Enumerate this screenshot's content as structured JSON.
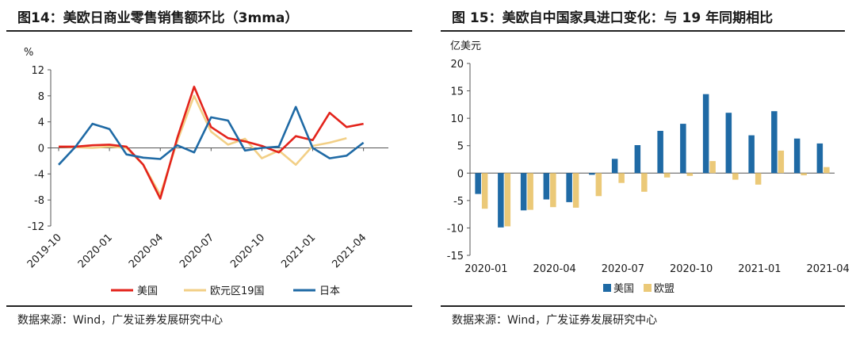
{
  "left": {
    "title": "图14：美欧日商业零售销售额环比（3mma）",
    "source": "数据来源：Wind，广发证券发展研究中心",
    "chart_data": {
      "type": "line",
      "title": "美欧日商业零售销售额环比（3mma）",
      "ylabel": "%",
      "xlabel": "",
      "ylim": [
        -12,
        12
      ],
      "yticks": [
        12,
        8,
        4,
        0,
        -4,
        -8,
        -12
      ],
      "ytick_labels": [
        "12",
        "8",
        "4",
        "0",
        "-4",
        "-8",
        "-12"
      ],
      "x": [
        "2019-10",
        "2019-11",
        "2019-12",
        "2020-01",
        "2020-02",
        "2020-03",
        "2020-04",
        "2020-05",
        "2020-06",
        "2020-07",
        "2020-08",
        "2020-09",
        "2020-10",
        "2020-11",
        "2020-12",
        "2021-01",
        "2021-02",
        "2021-03",
        "2021-04",
        "2021-05"
      ],
      "xtick_labels": [
        "2019-10",
        "2020-01",
        "2020-04",
        "2020-07",
        "2020-10",
        "2021-01",
        "2021-04"
      ],
      "xtick_index": [
        0,
        3,
        6,
        9,
        12,
        15,
        18
      ],
      "legend_position": "bottom",
      "series": [
        {
          "name": "美国",
          "color": "#e3231b",
          "values": [
            0.2,
            0.2,
            0.4,
            0.5,
            0.2,
            -2.6,
            -7.8,
            1.5,
            9.4,
            3.2,
            1.5,
            1.0,
            0.3,
            -0.7,
            1.8,
            1.2,
            5.4,
            3.2,
            3.7,
            null
          ]
        },
        {
          "name": "欧元区19国",
          "color": "#f2cf86",
          "values": [
            0.2,
            0.1,
            0.0,
            0.2,
            0.0,
            -2.6,
            -7.2,
            1.0,
            8.0,
            2.5,
            0.5,
            1.4,
            -1.6,
            -0.4,
            -2.6,
            0.3,
            0.8,
            1.5,
            null,
            null
          ]
        },
        {
          "name": "日本",
          "color": "#1f6aa5",
          "values": [
            -2.6,
            0.2,
            3.7,
            2.9,
            -1.0,
            -1.5,
            -1.7,
            0.4,
            -0.7,
            4.7,
            4.2,
            -0.4,
            0.0,
            0.2,
            6.3,
            0.0,
            -1.6,
            -1.2,
            0.8,
            null
          ]
        }
      ]
    }
  },
  "right": {
    "title": "图 15：美欧自中国家具进口变化：与 19 年同期相比",
    "source": "数据来源：Wind，广发证券发展研究中心",
    "chart_data": {
      "type": "bar",
      "title": "美欧自中国家具进口变化：与 19 年同期相比",
      "ylabel": "亿美元",
      "xlabel": "",
      "ylim": [
        -15,
        20
      ],
      "yticks": [
        20,
        15,
        10,
        5,
        0,
        -5,
        -10,
        -15
      ],
      "ytick_labels": [
        "20",
        "15",
        "10",
        "5",
        "0",
        "-5",
        "-10",
        "-15"
      ],
      "categories": [
        "2020-01",
        "2020-02",
        "2020-03",
        "2020-04",
        "2020-05",
        "2020-06",
        "2020-07",
        "2020-08",
        "2020-09",
        "2020-10",
        "2020-11",
        "2020-12",
        "2021-01",
        "2021-02",
        "2021-03",
        "2021-04"
      ],
      "xtick_labels": [
        "2020-01",
        "2020-04",
        "2020-07",
        "2020-10",
        "2021-01",
        "2021-04"
      ],
      "xtick_index": [
        0,
        3,
        6,
        9,
        12,
        15
      ],
      "legend_position": "bottom",
      "series": [
        {
          "name": "美国",
          "color": "#1f6aa5",
          "values": [
            -3.8,
            -9.9,
            -6.8,
            -4.8,
            -5.3,
            -0.3,
            2.6,
            5.1,
            7.7,
            9.0,
            14.4,
            11.0,
            6.9,
            11.3,
            6.3,
            5.4
          ]
        },
        {
          "name": "欧盟",
          "color": "#ebc978",
          "values": [
            -6.5,
            -9.7,
            -6.7,
            -6.2,
            -6.3,
            -4.2,
            -1.8,
            -3.4,
            -0.8,
            -0.5,
            2.2,
            -1.2,
            -2.1,
            4.1,
            -0.4,
            1.1
          ]
        }
      ]
    }
  }
}
